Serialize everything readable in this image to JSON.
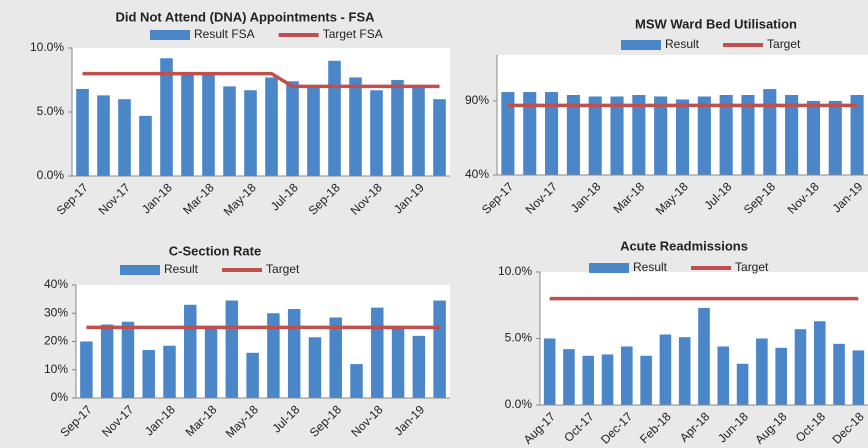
{
  "chart_data": [
    {
      "type": "bar",
      "title": "Did Not Attend (DNA) Appointments - FSA",
      "categories": [
        "Sep-17",
        null,
        "Nov-17",
        null,
        "Jan-18",
        null,
        "Mar-18",
        null,
        "May-18",
        null,
        "Jul-18",
        null,
        "Sep-18",
        null,
        "Nov-18",
        null,
        "Jan-19",
        null
      ],
      "series": [
        {
          "name": "Result FSA",
          "color": "#4a86c8",
          "values": [
            6.8,
            6.3,
            6.0,
            4.7,
            9.2,
            8.0,
            8.0,
            7.0,
            6.7,
            7.7,
            7.4,
            6.9,
            9.0,
            7.7,
            6.7,
            7.5,
            6.9,
            6.0
          ]
        },
        {
          "name": "Target FSA",
          "color": "#c0504d",
          "values": [
            8.0,
            8.0,
            8.0,
            8.0,
            8.0,
            8.0,
            8.0,
            8.0,
            8.0,
            8.0,
            7.0,
            7.0,
            7.0,
            7.0,
            7.0,
            7.0,
            7.0,
            7.0
          ]
        }
      ],
      "ylim": [
        0,
        10
      ],
      "yticks": [
        {
          "value": 0,
          "label": "0.0%"
        },
        {
          "value": 5,
          "label": "5.0%"
        },
        {
          "value": 10,
          "label": "10.0%"
        }
      ]
    },
    {
      "type": "bar",
      "title": "MSW Ward Bed Utilisation",
      "categories": [
        "Sep-17",
        null,
        "Nov-17",
        null,
        "Jan-18",
        null,
        "Mar-18",
        null,
        "May-18",
        null,
        "Jul-18",
        null,
        "Sep-18",
        null,
        "Nov-18",
        null,
        "Jan-19"
      ],
      "series": [
        {
          "name": "Result",
          "color": "#4a86c8",
          "values": [
            96,
            96,
            96,
            94,
            93,
            93,
            94,
            93,
            91,
            93,
            94,
            94,
            98,
            94,
            90,
            90,
            94
          ]
        },
        {
          "name": "Target",
          "color": "#c0504d",
          "values": [
            87,
            87,
            87,
            87,
            87,
            87,
            87,
            87,
            87,
            87,
            87,
            87,
            87,
            87,
            87,
            87,
            87
          ]
        }
      ],
      "ylim": [
        40,
        121
      ],
      "yticks": [
        {
          "value": 40,
          "label": "40%"
        },
        {
          "value": 90,
          "label": "90%"
        }
      ]
    },
    {
      "type": "bar",
      "title": "C-Section Rate",
      "categories": [
        "Sep-17",
        null,
        "Nov-17",
        null,
        "Jan-18",
        null,
        "Mar-18",
        null,
        "May-18",
        null,
        "Jul-18",
        null,
        "Sep-18",
        null,
        "Nov-18",
        null,
        "Jan-19",
        null
      ],
      "series": [
        {
          "name": "Result",
          "color": "#4a86c8",
          "values": [
            20,
            26,
            27,
            17,
            18.5,
            33,
            25,
            34.5,
            16,
            30,
            31.5,
            21.5,
            28.5,
            12,
            32,
            25,
            22,
            34.5
          ]
        },
        {
          "name": "Target",
          "color": "#c0504d",
          "values": [
            25,
            25,
            25,
            25,
            25,
            25,
            25,
            25,
            25,
            25,
            25,
            25,
            25,
            25,
            25,
            25,
            25,
            25
          ]
        }
      ],
      "ylim": [
        0,
        40
      ],
      "yticks": [
        {
          "value": 0,
          "label": "0%"
        },
        {
          "value": 10,
          "label": "10%"
        },
        {
          "value": 20,
          "label": "20%"
        },
        {
          "value": 30,
          "label": "30%"
        },
        {
          "value": 40,
          "label": "40%"
        }
      ]
    },
    {
      "type": "bar",
      "title": "Acute Readmissions",
      "categories": [
        "Aug-17",
        null,
        "Oct-17",
        null,
        "Dec-17",
        null,
        "Feb-18",
        null,
        "Apr-18",
        null,
        "Jun-18",
        null,
        "Aug-18",
        null,
        "Oct-18",
        null,
        "Dec-18"
      ],
      "series": [
        {
          "name": "Result",
          "color": "#4a86c8",
          "values": [
            5.0,
            4.2,
            3.7,
            3.8,
            4.4,
            3.7,
            5.3,
            5.1,
            7.3,
            4.4,
            3.1,
            5.0,
            4.3,
            5.7,
            6.3,
            4.6,
            4.1
          ]
        },
        {
          "name": "Target",
          "color": "#c0504d",
          "values": [
            8.0,
            8.0,
            8.0,
            8.0,
            8.0,
            8.0,
            8.0,
            8.0,
            8.0,
            8.0,
            8.0,
            8.0,
            8.0,
            8.0,
            8.0,
            8.0,
            8.0
          ]
        }
      ],
      "ylim": [
        0,
        10
      ],
      "yticks": [
        {
          "value": 0,
          "label": "0.0%"
        },
        {
          "value": 5,
          "label": "5.0%"
        },
        {
          "value": 10,
          "label": "10.0%"
        }
      ]
    }
  ]
}
